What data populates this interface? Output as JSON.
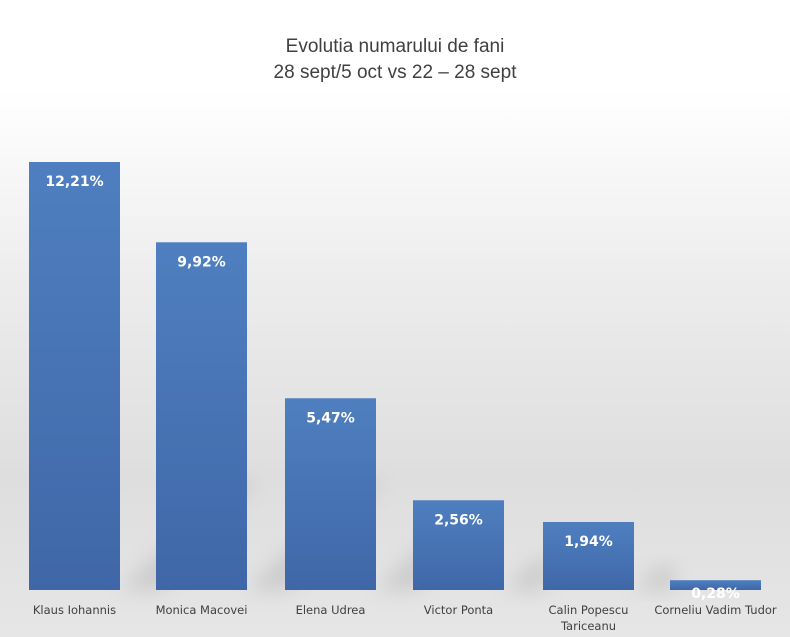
{
  "chart_data": {
    "type": "bar",
    "title": [
      "Evolutia numarului de fani",
      "28 sept/5 oct vs  22 – 28 sept"
    ],
    "categories": [
      [
        "Klaus Iohannis"
      ],
      [
        "Monica Macovei"
      ],
      [
        "Elena Udrea"
      ],
      [
        "Victor Ponta"
      ],
      [
        "Calin Popescu",
        "Tariceanu"
      ],
      [
        "Corneliu Vadim Tudor"
      ]
    ],
    "values": [
      12.21,
      9.92,
      5.47,
      2.56,
      1.94,
      0.28
    ],
    "data_labels": [
      "12,21%",
      "9,92%",
      "5,47%",
      "2,56%",
      "1,94%",
      "0,28%"
    ],
    "ylim": [
      0,
      12.21
    ],
    "unit": "%",
    "grid": false,
    "legend": "none",
    "colors": {
      "bar": "#4a78b8",
      "bar_dark": "#3c64a0",
      "text": "#404040",
      "label": "#ffffff"
    }
  }
}
